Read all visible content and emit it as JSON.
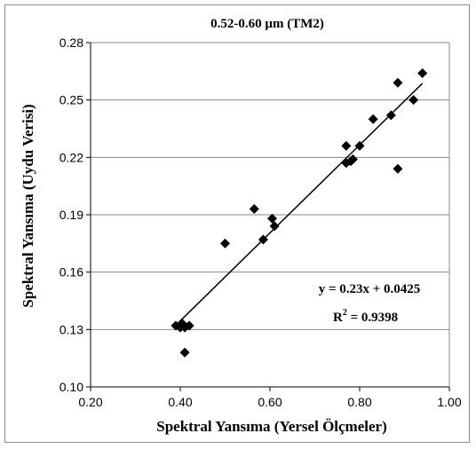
{
  "chart_data": {
    "type": "scatter",
    "title": "0.52-0.60 µm (TM2)",
    "xlabel": "Spektral Yansıma (Yersel Ölçmeler)",
    "ylabel": "Spektral Yansıma (Uydu Verisi)",
    "xlim": [
      0.2,
      1.0
    ],
    "ylim": [
      0.1,
      0.28
    ],
    "x_ticks": [
      "0.20",
      "0.40",
      "0.60",
      "0.80",
      "1.00"
    ],
    "y_ticks": [
      "0.10",
      "0.13",
      "0.16",
      "0.19",
      "0.22",
      "0.25",
      "0.28"
    ],
    "grid": "horizontal",
    "marker": "diamond",
    "points": [
      {
        "x": 0.39,
        "y": 0.132
      },
      {
        "x": 0.4,
        "y": 0.131
      },
      {
        "x": 0.405,
        "y": 0.133
      },
      {
        "x": 0.41,
        "y": 0.131
      },
      {
        "x": 0.42,
        "y": 0.132
      },
      {
        "x": 0.41,
        "y": 0.118
      },
      {
        "x": 0.5,
        "y": 0.175
      },
      {
        "x": 0.565,
        "y": 0.193
      },
      {
        "x": 0.585,
        "y": 0.177
      },
      {
        "x": 0.605,
        "y": 0.188
      },
      {
        "x": 0.61,
        "y": 0.184
      },
      {
        "x": 0.77,
        "y": 0.226
      },
      {
        "x": 0.77,
        "y": 0.217
      },
      {
        "x": 0.78,
        "y": 0.218
      },
      {
        "x": 0.785,
        "y": 0.219
      },
      {
        "x": 0.8,
        "y": 0.226
      },
      {
        "x": 0.83,
        "y": 0.24
      },
      {
        "x": 0.87,
        "y": 0.242
      },
      {
        "x": 0.885,
        "y": 0.259
      },
      {
        "x": 0.885,
        "y": 0.214
      },
      {
        "x": 0.92,
        "y": 0.25
      },
      {
        "x": 0.94,
        "y": 0.264
      }
    ],
    "trendline": {
      "slope": 0.23,
      "intercept": 0.0425,
      "x_range": [
        0.39,
        0.94
      ]
    },
    "annotations": {
      "equation": "y = 0.23x + 0.0425",
      "r_squared_prefix": "R",
      "r_squared_exp": "2",
      "r_squared_value": " = 0.9398"
    }
  }
}
